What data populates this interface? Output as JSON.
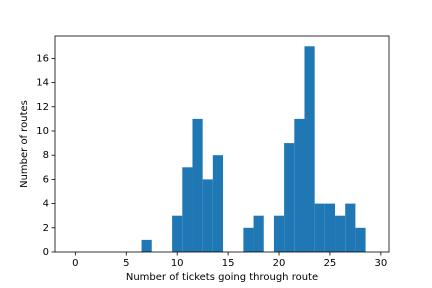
{
  "chart_data": {
    "type": "histogram",
    "xlabel": "Number of tickets going through route",
    "ylabel": "Number of routes",
    "bins": [
      -0.5,
      0.5,
      1.5,
      2.5,
      3.5,
      4.5,
      5.5,
      6.5,
      7.5,
      8.5,
      9.5,
      10.5,
      11.5,
      12.5,
      13.5,
      14.5,
      15.5,
      16.5,
      17.5,
      18.5,
      19.5,
      20.5,
      21.5,
      22.5,
      23.5,
      24.5,
      25.5,
      26.5,
      27.5,
      28.5
    ],
    "values": [
      0,
      0,
      0,
      0,
      0,
      0,
      0,
      1,
      0,
      0,
      3,
      7,
      11,
      6,
      8,
      0,
      0,
      2,
      3,
      0,
      3,
      9,
      11,
      17,
      4,
      4,
      3,
      4,
      2
    ],
    "color": "#1f77b4",
    "xlim": [
      -2,
      30.8
    ],
    "xticks": [
      0,
      5,
      10,
      15,
      20,
      25,
      30
    ],
    "ylim": [
      0,
      17.85
    ],
    "yticks": [
      0,
      2,
      4,
      6,
      8,
      10,
      12,
      14,
      16
    ]
  }
}
